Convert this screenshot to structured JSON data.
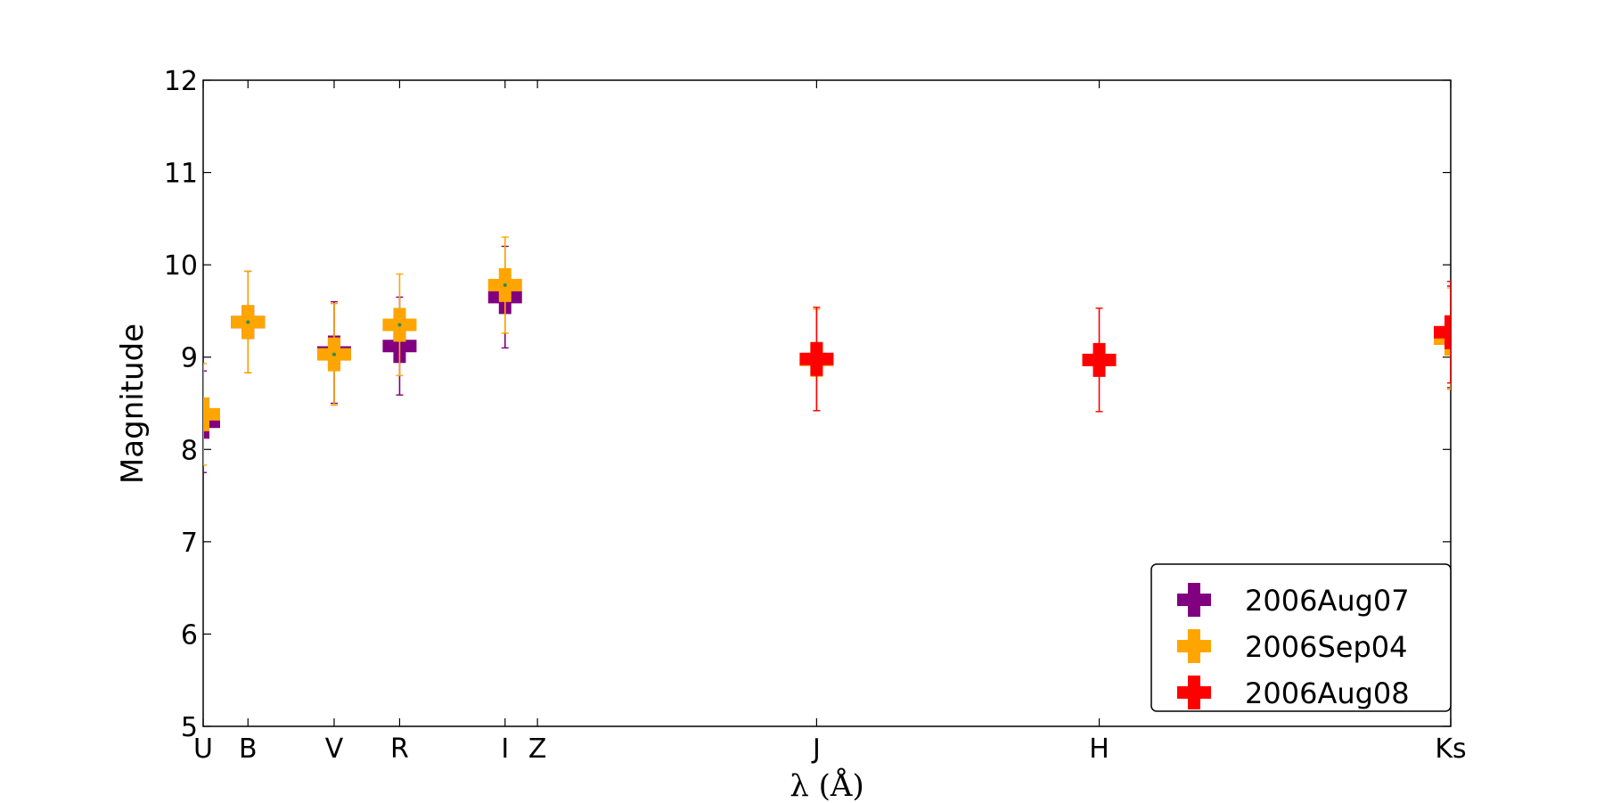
{
  "chart_data": {
    "type": "scatter",
    "title": "",
    "xlabel": "λ (Å)",
    "ylabel": "Magnitude",
    "ylim": [
      5,
      12
    ],
    "yticks": [
      5,
      6,
      7,
      8,
      9,
      10,
      11,
      12
    ],
    "xlim": [
      3500,
      21600
    ],
    "bands": [
      {
        "name": "U",
        "x": 3500
      },
      {
        "name": "B",
        "x": 4150
      },
      {
        "name": "V",
        "x": 5400
      },
      {
        "name": "R",
        "x": 6350
      },
      {
        "name": "I",
        "x": 7880
      },
      {
        "name": "Z",
        "x": 8350
      },
      {
        "name": "J",
        "x": 12400
      },
      {
        "name": "H",
        "x": 16500
      },
      {
        "name": "Ks",
        "x": 21600
      }
    ],
    "grid": false,
    "legend_position": "lower-right",
    "series": [
      {
        "name": "2006Aug07",
        "color": "#800080",
        "points": [
          {
            "band": "U",
            "x": 3500,
            "y": 8.3,
            "err": 0.55
          },
          {
            "band": "B",
            "x": 4150,
            "y": 9.38,
            "err": 0.55
          },
          {
            "band": "V",
            "x": 5400,
            "y": 9.05,
            "err": 0.55
          },
          {
            "band": "R",
            "x": 6350,
            "y": 9.12,
            "err": 0.53
          },
          {
            "band": "I",
            "x": 7880,
            "y": 9.65,
            "err": 0.55
          },
          {
            "band": "Ks",
            "x": 21600,
            "y": 9.22,
            "err": 0.55
          }
        ]
      },
      {
        "name": "2006Sep04",
        "color": "#FFA500",
        "points": [
          {
            "band": "U",
            "x": 3500,
            "y": 8.38,
            "err": 0.55
          },
          {
            "band": "B",
            "x": 4150,
            "y": 9.38,
            "err": 0.55
          },
          {
            "band": "V",
            "x": 5400,
            "y": 9.03,
            "err": 0.55
          },
          {
            "band": "R",
            "x": 6350,
            "y": 9.35,
            "err": 0.55
          },
          {
            "band": "I",
            "x": 7880,
            "y": 9.78,
            "err": 0.52
          },
          {
            "band": "J",
            "x": 12400,
            "y": 8.97,
            "err": 0.55
          },
          {
            "band": "Ks",
            "x": 21600,
            "y": 9.2,
            "err": 0.55
          }
        ]
      },
      {
        "name": "2006Aug08",
        "color": "#FF0000",
        "points": [
          {
            "band": "J",
            "x": 12400,
            "y": 8.98,
            "err": 0.56
          },
          {
            "band": "H",
            "x": 16500,
            "y": 8.97,
            "err": 0.56
          },
          {
            "band": "Ks",
            "x": 21600,
            "y": 9.27,
            "err": 0.55
          }
        ]
      }
    ]
  }
}
